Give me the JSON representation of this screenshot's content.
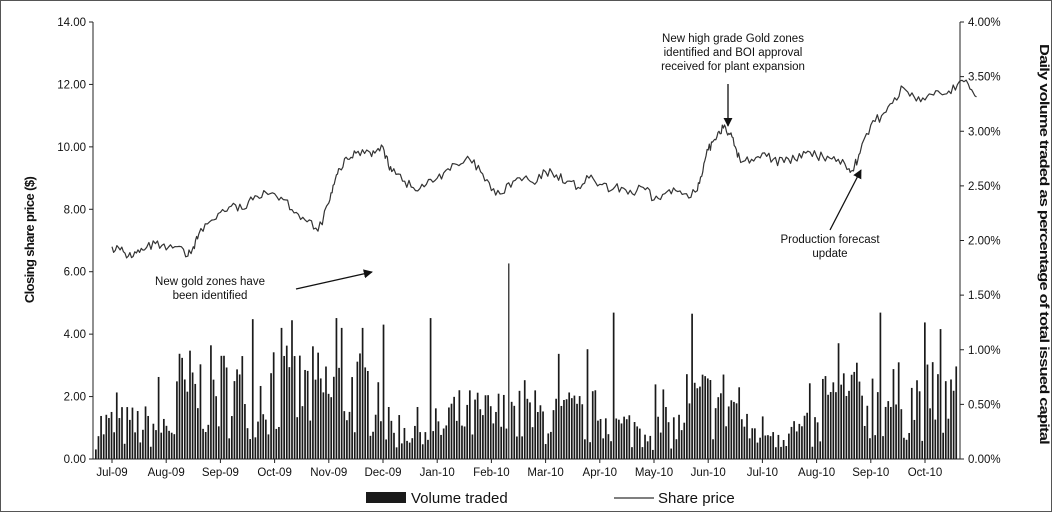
{
  "chart_data": {
    "type": "bar+line",
    "y_left": {
      "label": "Closing share price ($)",
      "range": [
        0,
        14
      ],
      "ticks": [
        "0.00",
        "2.00",
        "4.00",
        "6.00",
        "8.00",
        "10.00",
        "12.00",
        "14.00"
      ]
    },
    "y_right": {
      "label": "Daily volume traded as percentage of total issued capital",
      "range": [
        0,
        4
      ],
      "ticks": [
        "0.00%",
        "0.50%",
        "1.00%",
        "1.50%",
        "2.00%",
        "2.50%",
        "3.00%",
        "3.50%",
        "4.00%"
      ]
    },
    "x_ticks": [
      "Jul-09",
      "Aug-09",
      "Sep-09",
      "Oct-09",
      "Nov-09",
      "Dec-09",
      "Jan-10",
      "Feb-10",
      "Mar-10",
      "Apr-10",
      "May-10",
      "Jun-10",
      "Jul-10",
      "Aug-10",
      "Sep-10",
      "Oct-10"
    ],
    "legend": [
      {
        "name": "Volume traded",
        "color": "#1a1a1a",
        "kind": "bar"
      },
      {
        "name": "Share price",
        "color": "#333333",
        "kind": "line"
      }
    ],
    "annotations": [
      {
        "lines": [
          "New gold zones have",
          "been identified"
        ]
      },
      {
        "lines": [
          "New high grade Gold zones",
          "identified and BOI approval",
          "received for plant expansion"
        ]
      },
      {
        "lines": [
          "Production forecast",
          "update"
        ]
      }
    ],
    "series": [
      {
        "name": "Share price",
        "axis": "left",
        "x_month": [
          0.0,
          0.15,
          0.3,
          0.45,
          0.6,
          0.8,
          1.0,
          1.2,
          1.4,
          1.5,
          1.6,
          1.8,
          2.0,
          2.2,
          2.4,
          2.6,
          2.8,
          3.0,
          3.2,
          3.4,
          3.6,
          3.8,
          4.0,
          4.1,
          4.2,
          4.35,
          4.5,
          4.7,
          4.85,
          5.0,
          5.1,
          5.2,
          5.4,
          5.6,
          5.8,
          6.0,
          6.2,
          6.4,
          6.6,
          6.8,
          7.0,
          7.2,
          7.4,
          7.6,
          7.8,
          8.0,
          8.2,
          8.4,
          8.6,
          8.8,
          9.0,
          9.2,
          9.4,
          9.6,
          9.8,
          10.0,
          10.2,
          10.4,
          10.6,
          10.8,
          10.9,
          11.0,
          11.1,
          11.2,
          11.3,
          11.4,
          11.5,
          11.6,
          11.8,
          12.0,
          12.2,
          12.4,
          12.6,
          12.8,
          13.0,
          13.2,
          13.4,
          13.6,
          13.7,
          13.8,
          14.0,
          14.2,
          14.4,
          14.6,
          14.8,
          15.0,
          15.2,
          15.4,
          15.6,
          15.8,
          15.95
        ],
        "values": [
          6.8,
          6.7,
          6.5,
          6.6,
          6.7,
          6.9,
          6.7,
          6.8,
          6.5,
          6.8,
          7.2,
          7.6,
          7.9,
          8.1,
          8.0,
          8.3,
          8.6,
          8.5,
          8.3,
          7.9,
          7.6,
          7.3,
          8.2,
          8.8,
          9.3,
          9.6,
          9.8,
          9.9,
          9.8,
          10.0,
          9.4,
          9.3,
          8.9,
          8.6,
          8.8,
          9.0,
          9.3,
          9.4,
          9.6,
          9.2,
          8.6,
          8.5,
          8.9,
          9.0,
          8.8,
          9.2,
          9.1,
          8.9,
          8.7,
          9.0,
          8.8,
          8.6,
          8.7,
          8.5,
          8.7,
          8.3,
          8.5,
          8.6,
          8.5,
          8.6,
          9.2,
          9.9,
          10.2,
          10.5,
          10.7,
          10.4,
          10.0,
          9.5,
          9.6,
          9.8,
          9.6,
          9.5,
          9.6,
          9.8,
          9.7,
          9.7,
          9.6,
          9.3,
          9.4,
          9.8,
          10.7,
          11.0,
          11.4,
          11.9,
          11.6,
          11.5,
          11.8,
          11.7,
          12.0,
          12.0,
          11.6
        ]
      }
    ],
    "volume_note": "Daily volume traded shown as bars on the right axis (%); mostly 0.2%-1.2% with peaks near 1.35% and a spike to 1.79% in Dec-09"
  }
}
